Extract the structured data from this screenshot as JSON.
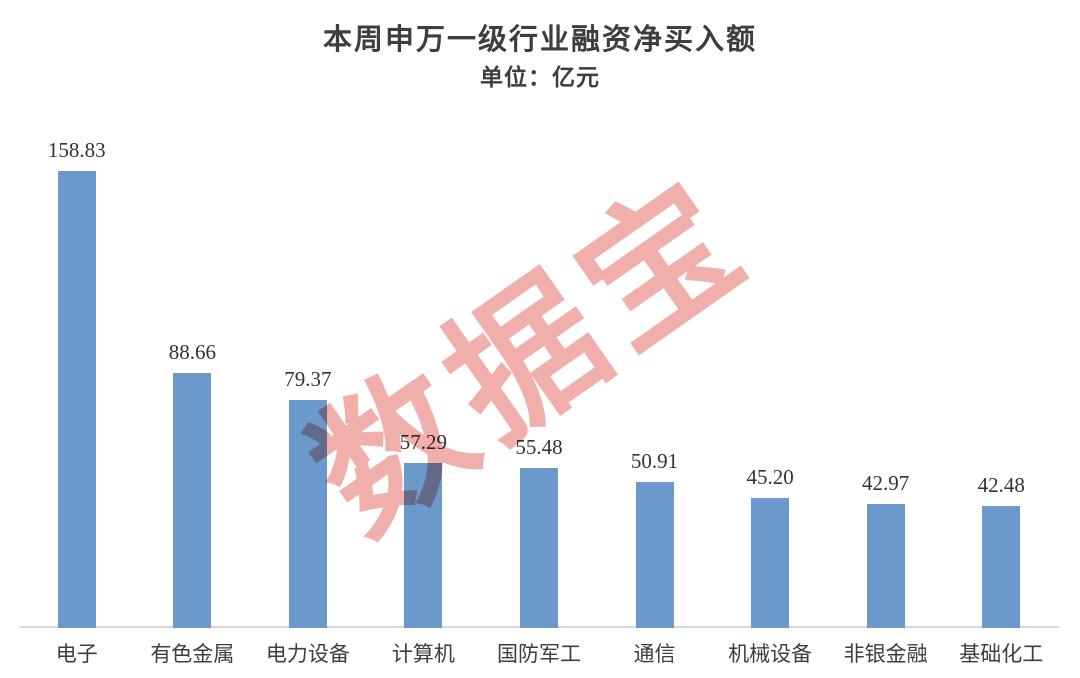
{
  "title": "本周申万一级行业融资净买入额",
  "subtitle": "单位：亿元",
  "watermark": "数据宝",
  "colors": {
    "bar": "#6b99cc",
    "axis_line": "#d9d9d9",
    "text": "#3e3e3e",
    "watermark": "#f0afaa"
  },
  "chart_data": {
    "type": "bar",
    "title": "本周申万一级行业融资净买入额",
    "subtitle": "单位：亿元",
    "categories": [
      "电子",
      "有色金属",
      "电力设备",
      "计算机",
      "国防军工",
      "通信",
      "机械设备",
      "非银金融",
      "基础化工"
    ],
    "values": [
      158.83,
      88.66,
      79.37,
      57.29,
      55.48,
      50.91,
      45.2,
      42.97,
      42.48
    ],
    "value_labels": [
      "158.83",
      "88.66",
      "79.37",
      "57.29",
      "55.48",
      "50.91",
      "45.20",
      "42.97",
      "42.48"
    ],
    "xlabel": "",
    "ylabel": "单位：亿元",
    "ylim": [
      0,
      170
    ],
    "grid": false,
    "legend": false,
    "data_labels_position": "above bars",
    "bar_color": "#6b99cc"
  }
}
